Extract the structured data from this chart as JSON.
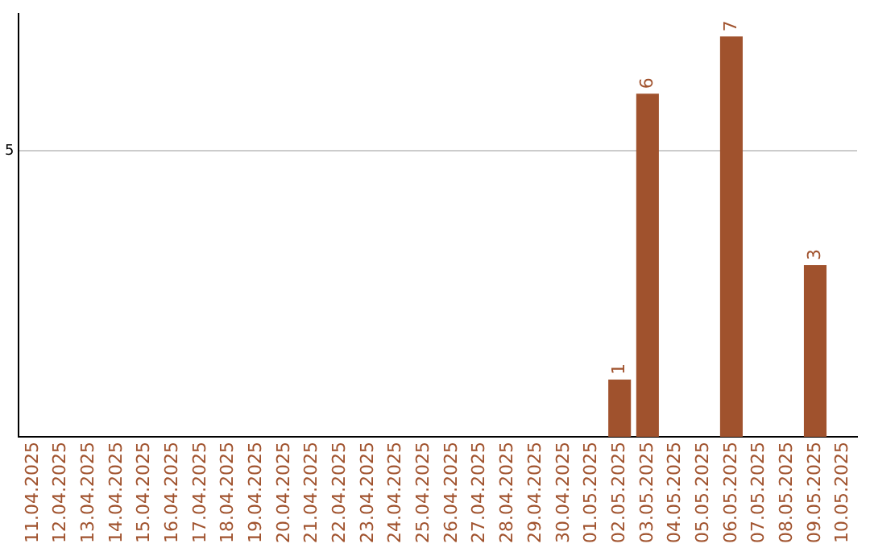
{
  "chart_data": {
    "type": "bar",
    "categories": [
      "11.04.2025",
      "12.04.2025",
      "13.04.2025",
      "14.04.2025",
      "15.04.2025",
      "16.04.2025",
      "17.04.2025",
      "18.04.2025",
      "19.04.2025",
      "20.04.2025",
      "21.04.2025",
      "22.04.2025",
      "23.04.2025",
      "24.04.2025",
      "25.04.2025",
      "26.04.2025",
      "27.04.2025",
      "28.04.2025",
      "29.04.2025",
      "30.04.2025",
      "01.05.2025",
      "02.05.2025",
      "03.05.2025",
      "04.05.2025",
      "05.05.2025",
      "06.05.2025",
      "07.05.2025",
      "08.05.2025",
      "09.05.2025",
      "10.05.2025"
    ],
    "values": [
      null,
      null,
      null,
      null,
      null,
      null,
      null,
      null,
      null,
      null,
      null,
      null,
      null,
      null,
      null,
      null,
      null,
      null,
      null,
      null,
      null,
      1,
      6,
      null,
      null,
      7,
      null,
      null,
      3,
      null
    ],
    "data_labels": true,
    "color": "#a0522d",
    "ylim": [
      0,
      7.4
    ],
    "yticks": [
      5
    ],
    "grid": "y",
    "legend": false
  }
}
